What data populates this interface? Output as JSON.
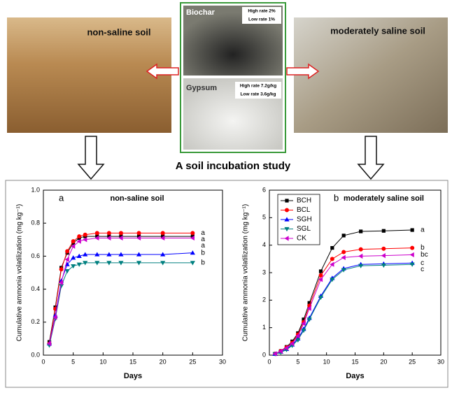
{
  "header": {
    "left_photo": "non-saline soil",
    "right_photo": "moderately saline soil",
    "biochar": {
      "name": "Biochar",
      "high": "High rate 2%",
      "low": "Low rate 1%"
    },
    "gypsum": {
      "name": "Gypsum",
      "high": "High rate 7.2g/kg",
      "low": "Low rate 3.6g/kg"
    },
    "study": "A soil incubation study"
  },
  "chart_data": [
    {
      "type": "line",
      "panel": "a",
      "title": "non-saline soil",
      "x_label": "Days",
      "y_label": "Cumulative ammonia volatilization (mg kg⁻¹)",
      "x": [
        1,
        2,
        3,
        4,
        5,
        6,
        7,
        9,
        11,
        13,
        16,
        20,
        25
      ],
      "xlim": [
        0,
        30
      ],
      "xticks": [
        0,
        5,
        10,
        15,
        20,
        25,
        30
      ],
      "ylim": [
        0,
        1
      ],
      "yticks": [
        {
          "value": 0,
          "label": "0.0"
        },
        {
          "value": 0.2,
          "label": "0.2"
        },
        {
          "value": 0.4,
          "label": "0.4"
        },
        {
          "value": 0.6,
          "label": "0.6"
        },
        {
          "value": 0.8,
          "label": "0.8"
        },
        {
          "value": 1,
          "label": "1.0"
        }
      ],
      "series": [
        {
          "color": "#000000",
          "marker": "square",
          "letter": "a",
          "values": [
            0.08,
            0.29,
            0.53,
            0.62,
            0.68,
            0.71,
            0.72,
            0.72,
            0.72,
            0.72,
            0.72,
            0.72,
            0.72
          ]
        },
        {
          "color": "#ff0000",
          "marker": "circle",
          "letter": "a",
          "values": [
            0.07,
            0.28,
            0.52,
            0.63,
            0.69,
            0.72,
            0.73,
            0.74,
            0.74,
            0.74,
            0.74,
            0.74,
            0.74
          ]
        },
        {
          "color": "#0000ff",
          "marker": "triangle-up",
          "letter": "b",
          "values": [
            0.07,
            0.24,
            0.45,
            0.55,
            0.59,
            0.6,
            0.61,
            0.61,
            0.61,
            0.61,
            0.61,
            0.61,
            0.62
          ]
        },
        {
          "color": "#008080",
          "marker": "triangle-down",
          "letter": "b",
          "values": [
            0.06,
            0.22,
            0.42,
            0.51,
            0.54,
            0.55,
            0.56,
            0.56,
            0.56,
            0.56,
            0.56,
            0.56,
            0.56
          ]
        },
        {
          "color": "#cc00cc",
          "marker": "triangle-left",
          "letter": "a",
          "values": [
            0.07,
            0.23,
            0.44,
            0.58,
            0.66,
            0.69,
            0.7,
            0.71,
            0.71,
            0.71,
            0.71,
            0.71,
            0.71
          ]
        }
      ]
    },
    {
      "type": "line",
      "panel": "b",
      "title": "moderately saline soil",
      "x_label": "Days",
      "y_label": "Cumulative ammonia volatilization (mg kg⁻¹)",
      "x": [
        1,
        2,
        3,
        4,
        5,
        6,
        7,
        9,
        11,
        13,
        16,
        20,
        25
      ],
      "xlim": [
        0,
        30
      ],
      "xticks": [
        0,
        5,
        10,
        15,
        20,
        25,
        30
      ],
      "ylim": [
        0,
        6
      ],
      "yticks": [
        0,
        1,
        2,
        3,
        4,
        5,
        6
      ],
      "legend": "top-left",
      "series": [
        {
          "name": "BCH",
          "color": "#000000",
          "marker": "square",
          "letter": "a",
          "values": [
            0.05,
            0.15,
            0.3,
            0.5,
            0.8,
            1.3,
            1.9,
            3.05,
            3.9,
            4.35,
            4.5,
            4.52,
            4.55
          ]
        },
        {
          "name": "BCL",
          "color": "#ff0000",
          "marker": "circle",
          "letter": "b",
          "values": [
            0.05,
            0.15,
            0.28,
            0.45,
            0.75,
            1.2,
            1.8,
            2.9,
            3.5,
            3.75,
            3.85,
            3.87,
            3.9
          ]
        },
        {
          "name": "SGH",
          "color": "#0000ff",
          "marker": "triangle-up",
          "letter": "c",
          "values": [
            0.04,
            0.12,
            0.22,
            0.38,
            0.6,
            0.95,
            1.35,
            2.15,
            2.8,
            3.15,
            3.3,
            3.32,
            3.35
          ]
        },
        {
          "name": "SGL",
          "color": "#008080",
          "marker": "triangle-down",
          "letter": "c",
          "values": [
            0.04,
            0.1,
            0.2,
            0.35,
            0.55,
            0.9,
            1.3,
            2.1,
            2.75,
            3.1,
            3.25,
            3.27,
            3.3
          ]
        },
        {
          "name": "CK",
          "color": "#cc00cc",
          "marker": "triangle-left",
          "letter": "bc",
          "values": [
            0.05,
            0.14,
            0.26,
            0.42,
            0.7,
            1.15,
            1.7,
            2.75,
            3.3,
            3.55,
            3.6,
            3.62,
            3.65
          ]
        }
      ]
    }
  ]
}
